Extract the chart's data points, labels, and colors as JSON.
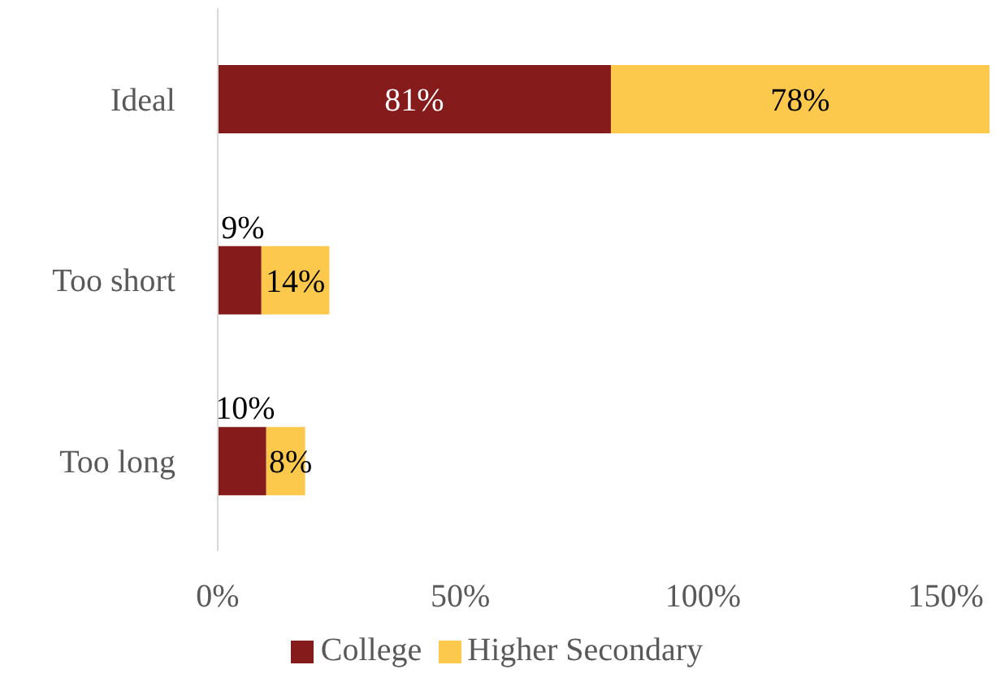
{
  "chart_data": {
    "type": "bar",
    "orientation": "horizontal",
    "stacked": true,
    "categories": [
      "Ideal",
      "Too short",
      "Too long"
    ],
    "series": [
      {
        "name": "College",
        "color": "#861b1b",
        "values": [
          81,
          9,
          10
        ],
        "value_labels": [
          "81%",
          "9%",
          "10%"
        ]
      },
      {
        "name": "Higher Secondary",
        "color": "#fdc94c",
        "values": [
          78,
          14,
          8
        ],
        "value_labels": [
          "78%",
          "14%",
          "8%"
        ]
      }
    ],
    "xlim": [
      0,
      160
    ],
    "xticks": [
      {
        "value": 0,
        "label": "0%"
      },
      {
        "value": 50,
        "label": "50%"
      },
      {
        "value": 100,
        "label": "100%"
      },
      {
        "value": 150,
        "label": "150%"
      }
    ],
    "grid": false,
    "legend": "bottom"
  }
}
